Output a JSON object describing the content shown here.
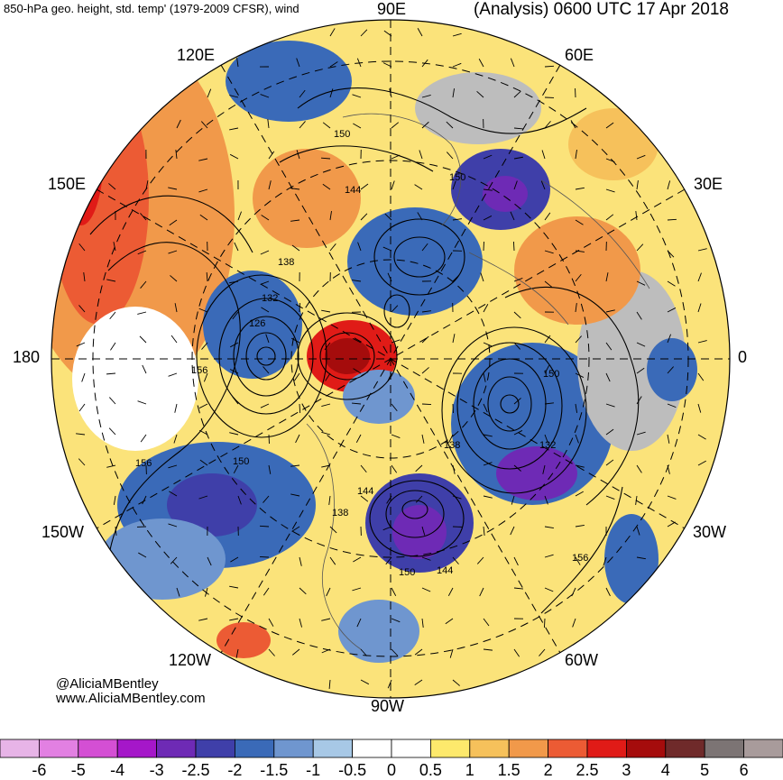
{
  "header": {
    "left_title": "850-hPa geo. height, std. temp' (1979-2009 CFSR), wind",
    "right_title": "(Analysis) 0600 UTC 17 Apr 2018"
  },
  "longitude_labels": {
    "lon_90e": "90E",
    "lon_120e": "120E",
    "lon_60e": "60E",
    "lon_150e": "150E",
    "lon_30e": "30E",
    "lon_180": "180",
    "lon_0": "0",
    "lon_150w": "150W",
    "lon_30w": "30W",
    "lon_120w": "120W",
    "lon_60w": "60W",
    "lon_90w": "90W"
  },
  "contour_labels": [
    "150",
    "144",
    "138",
    "132",
    "126",
    "156",
    "150",
    "156",
    "150",
    "138",
    "132",
    "144",
    "138",
    "150",
    "144",
    "150",
    "156"
  ],
  "credits": {
    "handle": "@AliciaMBentley",
    "website": "www.AliciaMBentley.com"
  },
  "colorbar": {
    "tick_labels": [
      "-6",
      "-5",
      "-4",
      "-3",
      "-2.5",
      "-2",
      "-1.5",
      "-1",
      "-0.5",
      "0",
      "0.5",
      "1",
      "1.5",
      "2",
      "2.5",
      "3",
      "4",
      "5",
      "6"
    ],
    "colors": [
      "#e7b4e7",
      "#e280e2",
      "#d44fd4",
      "#a517c9",
      "#6e2ab5",
      "#3f3fa9",
      "#3a6ab8",
      "#6f96cf",
      "#a7c8e6",
      "#ffffff",
      "#ffffff",
      "#fde96c",
      "#f6c15b",
      "#f1994a",
      "#ec5b34",
      "#e01b17",
      "#a50c0c",
      "#6f2a2a",
      "#7c7474",
      "#a89b9b"
    ]
  },
  "style": {
    "land_mask_color": "#bdbdbd",
    "contour_color": "#000000",
    "grid_color": "#000000"
  }
}
